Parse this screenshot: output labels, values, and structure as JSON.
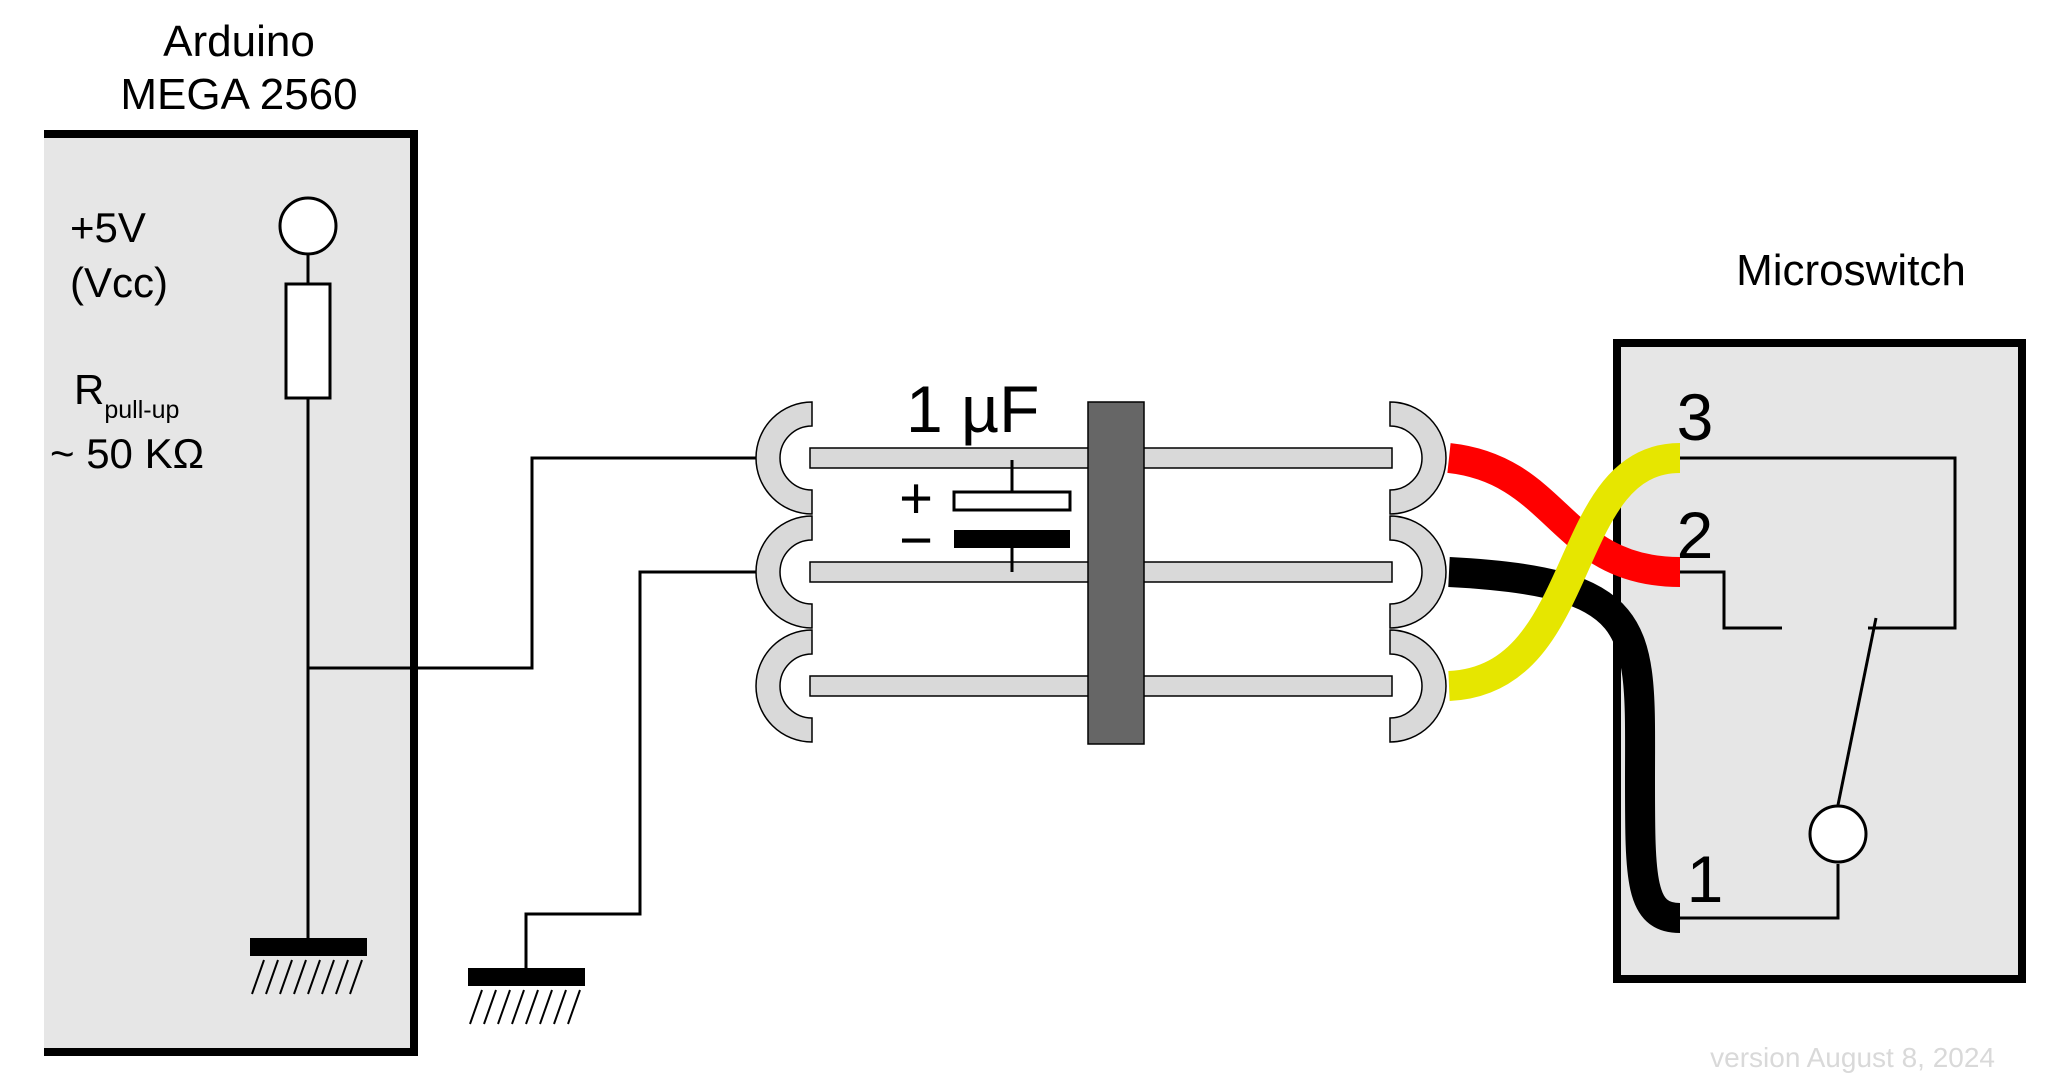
{
  "arduino": {
    "title_line1": "Arduino",
    "title_line2": "MEGA 2560",
    "vcc_line1": "+5V",
    "vcc_line2": "(Vcc)",
    "r_main": "R",
    "r_sub": "pull-up",
    "r_value": "~ 50 KΩ"
  },
  "capacitor": {
    "value": "1 µF",
    "plus": "+",
    "minus": "−"
  },
  "microswitch": {
    "title": "Microswitch",
    "pin3": "3",
    "pin2": "2",
    "pin1": "1"
  },
  "wire_colors": {
    "red": "#ff0000",
    "yellow": "#e6e600",
    "black": "#000000"
  },
  "footer": {
    "version": "version August 8, 2024"
  }
}
